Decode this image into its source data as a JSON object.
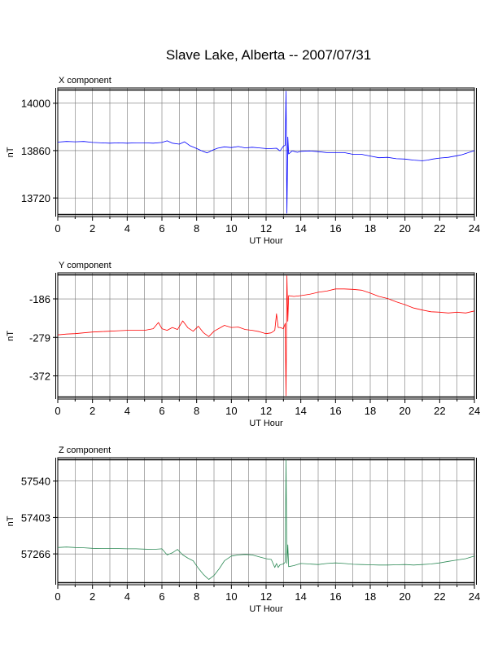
{
  "title": "Slave Lake, Alberta -- 2007/07/31",
  "chart_data": [
    {
      "type": "line",
      "title": "X component",
      "xlabel": "UT Hour",
      "ylabel": "nT",
      "xlim": [
        0,
        24
      ],
      "ylim": [
        13665,
        14045
      ],
      "xticks": [
        0,
        2,
        4,
        6,
        8,
        10,
        12,
        14,
        16,
        18,
        20,
        22,
        24
      ],
      "xtick_labels": [
        "0",
        "2",
        "4",
        "6",
        "8",
        "10",
        "12",
        "14",
        "16",
        "18",
        "20",
        "22",
        "24"
      ],
      "yticks": [
        13720,
        13860,
        14000
      ],
      "ytick_labels": [
        "13720",
        "13860",
        "14000"
      ],
      "grid": true,
      "color": "#0000ff",
      "series": [
        {
          "x": [
            0,
            0.5,
            1,
            1.5,
            2,
            2.5,
            3,
            3.5,
            4,
            4.5,
            5,
            5.5,
            6,
            6.3,
            6.6,
            7,
            7.3,
            7.6,
            8,
            8.3,
            8.6,
            8.9,
            9.2,
            9.6,
            10,
            10.4,
            10.8,
            11.2,
            11.6,
            12,
            12.3,
            12.6,
            12.8,
            13.0,
            13.1,
            13.15,
            13.2,
            13.25,
            13.3,
            13.5,
            13.8,
            14,
            14.5,
            15,
            15.5,
            16,
            16.5,
            17,
            17.5,
            18,
            18.5,
            19,
            19.5,
            20,
            20.5,
            21,
            21.3,
            21.6,
            22,
            22.5,
            23,
            23.3,
            23.6,
            24
          ],
          "values": [
            13885,
            13887,
            13886,
            13887,
            13884,
            13883,
            13882,
            13883,
            13882,
            13883,
            13883,
            13882,
            13884,
            13889,
            13882,
            13879,
            13886,
            13875,
            13866,
            13859,
            13853,
            13861,
            13867,
            13871,
            13869,
            13872,
            13868,
            13870,
            13868,
            13866,
            13866,
            13867,
            13859,
            13873,
            13876,
            14035,
            13675,
            13900,
            13850,
            13859,
            13855,
            13858,
            13859,
            13857,
            13854,
            13854,
            13854,
            13849,
            13849,
            13844,
            13839,
            13840,
            13836,
            13835,
            13832,
            13830,
            13832,
            13835,
            13838,
            13840,
            13845,
            13848,
            13853,
            13860
          ]
        }
      ]
    },
    {
      "type": "line",
      "title": "Y component",
      "xlabel": "UT Hour",
      "ylabel": "nT",
      "xlim": [
        0,
        24
      ],
      "ylim": [
        -428,
        -123
      ],
      "xticks": [
        0,
        2,
        4,
        6,
        8,
        10,
        12,
        14,
        16,
        18,
        20,
        22,
        24
      ],
      "xtick_labels": [
        "0",
        "2",
        "4",
        "6",
        "8",
        "10",
        "12",
        "14",
        "16",
        "18",
        "20",
        "22",
        "24"
      ],
      "yticks": [
        -372,
        -279,
        -186
      ],
      "ytick_labels": [
        "-372",
        "-279",
        "-186"
      ],
      "grid": true,
      "color": "#ff0000",
      "series": [
        {
          "x": [
            0,
            0.5,
            1,
            1.5,
            2,
            2.5,
            3,
            3.5,
            4,
            4.5,
            5,
            5.5,
            5.8,
            6.0,
            6.3,
            6.6,
            6.9,
            7.2,
            7.5,
            7.8,
            8.1,
            8.4,
            8.7,
            9.0,
            9.3,
            9.6,
            10,
            10.4,
            10.8,
            11.2,
            11.6,
            12,
            12.3,
            12.5,
            12.6,
            12.7,
            12.8,
            13.0,
            13.1,
            13.15,
            13.2,
            13.25,
            13.3,
            13.6,
            14,
            14.5,
            15,
            15.5,
            16,
            16.5,
            17,
            17.5,
            18,
            18.5,
            19,
            19.5,
            20,
            20.5,
            21,
            21.5,
            22,
            22.5,
            23,
            23.5,
            24
          ],
          "values": [
            -273,
            -271,
            -270,
            -268,
            -266,
            -265,
            -264,
            -263,
            -262,
            -262,
            -262,
            -258,
            -243,
            -258,
            -262,
            -255,
            -260,
            -239,
            -256,
            -264,
            -252,
            -268,
            -277,
            -264,
            -257,
            -250,
            -255,
            -254,
            -260,
            -262,
            -265,
            -270,
            -268,
            -262,
            -222,
            -255,
            -255,
            -258,
            -245,
            -420,
            -130,
            -240,
            -178,
            -180,
            -178,
            -175,
            -170,
            -167,
            -162,
            -162,
            -163,
            -165,
            -172,
            -180,
            -185,
            -193,
            -200,
            -208,
            -213,
            -217,
            -218,
            -220,
            -218,
            -220,
            -215
          ]
        }
      ]
    },
    {
      "type": "line",
      "title": "Z component",
      "xlabel": "UT Hour",
      "ylabel": "nT",
      "xlim": [
        0,
        24
      ],
      "ylim": [
        57150,
        57628
      ],
      "xticks": [
        0,
        2,
        4,
        6,
        8,
        10,
        12,
        14,
        16,
        18,
        20,
        22,
        24
      ],
      "xtick_labels": [
        "0",
        "2",
        "4",
        "6",
        "8",
        "10",
        "12",
        "14",
        "16",
        "18",
        "20",
        "22",
        "24"
      ],
      "yticks": [
        57266,
        57403,
        57540
      ],
      "ytick_labels": [
        "57266",
        "57403",
        "57540"
      ],
      "grid": true,
      "color": "#2e8b57",
      "series": [
        {
          "x": [
            0,
            0.5,
            1,
            1.5,
            2,
            2.5,
            3,
            3.5,
            4,
            4.5,
            5,
            5.5,
            6,
            6.3,
            6.6,
            6.9,
            7.2,
            7.5,
            7.8,
            8.1,
            8.4,
            8.7,
            9.0,
            9.3,
            9.6,
            10,
            10.4,
            10.8,
            11.2,
            11.6,
            12,
            12.3,
            12.5,
            12.6,
            12.7,
            12.8,
            13.0,
            13.1,
            13.15,
            13.2,
            13.25,
            13.3,
            13.6,
            14,
            14.5,
            15,
            15.5,
            16,
            16.5,
            17,
            17.5,
            18,
            18.5,
            19,
            19.5,
            20,
            20.5,
            21,
            21.5,
            22,
            22.5,
            23,
            23.5,
            24
          ],
          "values": [
            57290,
            57292,
            57290,
            57289,
            57287,
            57286,
            57286,
            57286,
            57285,
            57285,
            57284,
            57283,
            57285,
            57262,
            57270,
            57283,
            57262,
            57250,
            57240,
            57212,
            57188,
            57170,
            57185,
            57210,
            57240,
            57258,
            57262,
            57264,
            57262,
            57255,
            57248,
            57245,
            57215,
            57230,
            57215,
            57225,
            57228,
            57235,
            57620,
            57230,
            57300,
            57218,
            57222,
            57230,
            57228,
            57226,
            57230,
            57232,
            57230,
            57227,
            57226,
            57225,
            57224,
            57224,
            57225,
            57226,
            57224,
            57226,
            57228,
            57232,
            57238,
            57243,
            57248,
            57258
          ]
        }
      ]
    }
  ]
}
